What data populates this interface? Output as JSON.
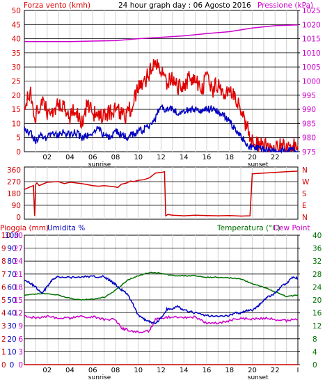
{
  "colors": {
    "wind": "#e00000",
    "gust": "#e00000",
    "wind_avg": "#0000c0",
    "pressure": "#cc00cc",
    "direction": "#d00000",
    "rain": "#cc0000",
    "humidity": "#0000c0",
    "temperature": "#007000",
    "dewpoint": "#cc00cc",
    "grid_v": "#d8d8d8",
    "grid_h": "#000000",
    "frame": "#000000"
  },
  "chart_data": [
    {
      "type": "line",
      "title": "24 hour graph day : 06 Agosto 2016",
      "left_label": "Forza vento (kmh)",
      "right_label": "Pressione (kPa)",
      "x_ticks": [
        "02",
        "04",
        "06",
        "08",
        "10",
        "12",
        "14",
        "16",
        "18",
        "20",
        "22",
        "I"
      ],
      "x_notes": [
        {
          "text": "sunrise",
          "hour": 6.6
        },
        {
          "text": "sunset",
          "hour": 20.5
        }
      ],
      "x_range": [
        0,
        24
      ],
      "y_left_ticks": [
        "0",
        "5",
        "10",
        "15",
        "20",
        "25",
        "30",
        "35",
        "40",
        "45",
        "50"
      ],
      "y_left_range": [
        0,
        50
      ],
      "y_right_ticks": [
        "975",
        "980",
        "985",
        "990",
        "995",
        "1000",
        "1005",
        "1010",
        "1015",
        "1020",
        "1025"
      ],
      "y_right_range": [
        975,
        1025
      ],
      "series": [
        {
          "axis": "left",
          "key": "gust",
          "hours": [
            0,
            0.5,
            1,
            1.5,
            2,
            2.5,
            3,
            3.5,
            4,
            4.5,
            5,
            5.5,
            6,
            6.5,
            7,
            7.5,
            8,
            8.5,
            9,
            9.5,
            10,
            10.5,
            11,
            11.5,
            12,
            12.5,
            13,
            13.5,
            14,
            14.5,
            15,
            15.5,
            16,
            16.5,
            17,
            17.5,
            18,
            18.5,
            19,
            19.5,
            20,
            20.5,
            21,
            21.5,
            22,
            22.5,
            23,
            23.5,
            24
          ],
          "values": [
            15,
            22,
            12,
            18,
            14,
            15,
            17,
            16,
            12,
            15,
            11,
            16,
            14,
            13,
            12,
            14,
            15,
            13,
            13,
            17,
            22,
            24,
            28,
            31,
            28,
            24,
            26,
            23,
            22,
            27,
            25,
            22,
            26,
            22,
            24,
            19,
            22,
            18,
            15,
            9,
            4,
            2,
            2,
            1,
            1,
            2,
            1,
            3,
            2
          ]
        },
        {
          "axis": "left",
          "key": "wind_avg",
          "hours": [
            0,
            0.5,
            1,
            1.5,
            2,
            2.5,
            3,
            3.5,
            4,
            4.5,
            5,
            5.5,
            6,
            6.5,
            7,
            7.5,
            8,
            8.5,
            9,
            9.5,
            10,
            10.5,
            11,
            11.5,
            12,
            12.5,
            13,
            13.5,
            14,
            14.5,
            15,
            15.5,
            16,
            16.5,
            17,
            17.5,
            18,
            18.5,
            19,
            19.5,
            20,
            20.5,
            21,
            21.5,
            22,
            22.5,
            23,
            23.5,
            24
          ],
          "values": [
            8,
            7,
            4,
            6,
            5,
            7,
            6,
            7,
            6,
            7,
            5,
            6,
            7,
            8,
            6,
            5,
            7,
            6,
            5,
            6,
            7,
            8,
            9,
            12,
            16,
            15,
            15,
            14,
            14,
            15,
            15,
            14,
            15,
            15,
            14,
            13,
            11,
            8,
            5,
            3,
            1,
            1,
            1,
            0,
            0,
            1,
            0,
            1,
            0
          ]
        },
        {
          "axis": "right",
          "key": "pressure",
          "hours": [
            0,
            4,
            8,
            10,
            12,
            14,
            16,
            18,
            20,
            22,
            24
          ],
          "values": [
            1014,
            1014,
            1014.3,
            1015,
            1015.5,
            1016,
            1016.8,
            1017.5,
            1018.8,
            1019.6,
            1019.9
          ]
        }
      ]
    },
    {
      "type": "line",
      "title": "",
      "x_range": [
        0,
        24
      ],
      "y_left_ticks": [
        "0",
        "90",
        "180",
        "270",
        "360"
      ],
      "y_left_range": [
        0,
        360
      ],
      "y_right_ticks": [
        "N",
        "E",
        "S",
        "W",
        "N"
      ],
      "series": [
        {
          "axis": "left",
          "key": "direction",
          "hours": [
            0,
            0.5,
            0.8,
            0.9,
            1.0,
            1.1,
            1.3,
            2,
            3,
            3.5,
            4,
            5,
            6,
            6.5,
            7,
            8,
            8.2,
            8.5,
            9,
            9.3,
            9.6,
            10,
            10.5,
            11,
            11.5,
            12,
            12.3,
            12.4,
            12.6,
            13,
            14,
            15,
            16,
            17,
            18,
            19,
            19.8,
            20,
            21,
            22,
            23,
            24
          ],
          "values": [
            210,
            230,
            240,
            10,
            250,
            260,
            240,
            265,
            270,
            255,
            265,
            255,
            240,
            235,
            240,
            230,
            225,
            250,
            260,
            275,
            270,
            280,
            285,
            300,
            335,
            340,
            345,
            10,
            20,
            15,
            10,
            15,
            12,
            10,
            12,
            8,
            10,
            330,
            335,
            340,
            345,
            350
          ]
        }
      ]
    },
    {
      "type": "line",
      "title": "",
      "left_label": "Pioggia (mm)",
      "left_label2": "Umidita %",
      "right_label": "Temperatura (°C)",
      "right_label2": "Dew Point",
      "x_ticks": [
        "02",
        "04",
        "06",
        "08",
        "10",
        "12",
        "14",
        "16",
        "18",
        "20",
        "22",
        "I"
      ],
      "x_notes": [
        {
          "text": "sunrise",
          "hour": 6.6
        },
        {
          "text": "sunset",
          "hour": 20.5
        }
      ],
      "x_range": [
        0,
        24
      ],
      "y_rain_ticks": [
        "0",
        "1",
        "2",
        "3",
        "4",
        "5",
        "6",
        "7",
        "8",
        "9",
        "10"
      ],
      "y_rain_range": [
        0,
        10
      ],
      "y_left_ticks": [
        "0",
        "10",
        "20",
        "30",
        "40",
        "50",
        "60",
        "70",
        "80",
        "90",
        "100"
      ],
      "y_left_range": [
        0,
        100
      ],
      "y_hum_ticks": [
        "0",
        "3",
        "6",
        "9",
        "12",
        "15",
        "18",
        "21",
        "24",
        "27",
        "30"
      ],
      "y_right_ticks": [
        "0",
        "4",
        "8",
        "12",
        "16",
        "20",
        "24",
        "28",
        "32",
        "36",
        "40"
      ],
      "y_right_range": [
        0,
        40
      ],
      "series": [
        {
          "axis": "left",
          "key": "humidity",
          "hours": [
            0,
            0.5,
            1,
            1.5,
            2,
            2.5,
            3,
            4,
            5,
            6,
            7,
            7.5,
            8,
            8.5,
            9,
            9.5,
            10,
            10.5,
            11,
            11.5,
            12,
            12.5,
            13,
            13.5,
            14,
            15,
            16,
            17,
            18,
            18.5,
            19,
            19.5,
            20,
            20.5,
            21,
            21.5,
            22,
            22.5,
            23,
            23.5,
            24
          ],
          "values": [
            65,
            63,
            60,
            55,
            60,
            66,
            68,
            67,
            68,
            68,
            68,
            65,
            62,
            58,
            55,
            47,
            38,
            35,
            33,
            32,
            36,
            43,
            43,
            45,
            42,
            40,
            38,
            37,
            38,
            40,
            40,
            42,
            42,
            45,
            50,
            53,
            55,
            60,
            63,
            67,
            67
          ]
        },
        {
          "axis": "right",
          "key": "temperature",
          "hours": [
            0,
            1,
            2,
            3,
            4,
            5,
            6,
            7,
            8,
            9,
            10,
            11,
            12,
            13,
            14,
            15,
            16,
            17,
            18,
            19,
            20,
            21,
            22,
            23,
            24
          ],
          "values": [
            21.5,
            21.8,
            22,
            21.5,
            20.5,
            20,
            20.3,
            20.8,
            23,
            26,
            27.5,
            28.5,
            28.3,
            27.5,
            27.5,
            27.5,
            27,
            27,
            26.8,
            26.5,
            25,
            24,
            22.5,
            21,
            21.5
          ]
        },
        {
          "axis": "left",
          "key": "dewpoint",
          "hours": [
            0,
            1,
            2,
            3,
            4,
            5,
            6,
            7,
            8,
            8.5,
            9,
            10,
            11,
            11.5,
            12,
            13,
            14,
            15,
            16,
            17,
            18,
            19,
            20,
            21,
            22,
            23,
            24
          ],
          "values": [
            38,
            36,
            37,
            36,
            36,
            37,
            37,
            35,
            35,
            28,
            27,
            25,
            26,
            35,
            36,
            37,
            36,
            37,
            32,
            32,
            34,
            36,
            35,
            36,
            35,
            34,
            35
          ]
        },
        {
          "axis": "rain",
          "key": "rain",
          "hours": [
            0,
            24
          ],
          "values": [
            0,
            0
          ]
        }
      ]
    }
  ]
}
